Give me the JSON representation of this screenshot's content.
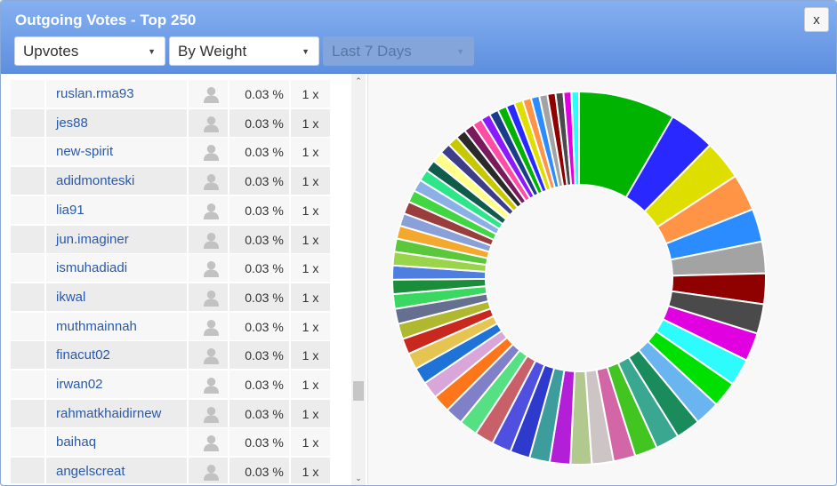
{
  "window": {
    "title": "Outgoing Votes - Top 250",
    "close_label": "x"
  },
  "filters": {
    "vote_type": "Upvotes",
    "sort": "By Weight",
    "period": "Last 7 Days"
  },
  "icons": {
    "close": "close-icon",
    "caret": "caret-down-icon",
    "user": "user-silhouette-icon",
    "scroll_up": "scroll-up-arrow-icon",
    "scroll_down": "scroll-down-arrow-icon"
  },
  "rows": [
    {
      "user": "ruslan.rma93",
      "percent": "0.03 %",
      "count": "1 x"
    },
    {
      "user": "jes88",
      "percent": "0.03 %",
      "count": "1 x"
    },
    {
      "user": "new-spirit",
      "percent": "0.03 %",
      "count": "1 x"
    },
    {
      "user": "adidmonteski",
      "percent": "0.03 %",
      "count": "1 x"
    },
    {
      "user": "lia91",
      "percent": "0.03 %",
      "count": "1 x"
    },
    {
      "user": "jun.imaginer",
      "percent": "0.03 %",
      "count": "1 x"
    },
    {
      "user": "ismuhadiadi",
      "percent": "0.03 %",
      "count": "1 x"
    },
    {
      "user": "ikwal",
      "percent": "0.03 %",
      "count": "1 x"
    },
    {
      "user": "muthmainnah",
      "percent": "0.03 %",
      "count": "1 x"
    },
    {
      "user": "finacut02",
      "percent": "0.03 %",
      "count": "1 x"
    },
    {
      "user": "irwan02",
      "percent": "0.03 %",
      "count": "1 x"
    },
    {
      "user": "rahmatkhaidirnew",
      "percent": "0.03 %",
      "count": "1 x"
    },
    {
      "user": "baihaq",
      "percent": "0.03 %",
      "count": "1 x"
    },
    {
      "user": "angelscreat",
      "percent": "0.03 %",
      "count": "1 x"
    }
  ],
  "chart_data": {
    "type": "pie",
    "title": "",
    "donut": true,
    "start_angle_deg": 0,
    "direction": "clockwise",
    "values": [
      35.7,
      17.0,
      14.6,
      13.6,
      12.2,
      11.7,
      11.3,
      10.9,
      10.5,
      10.0,
      9.5,
      9.2,
      9.0,
      8.7,
      8.4,
      8.1,
      8.0,
      7.8,
      7.6,
      7.5,
      7.3,
      7.2,
      7.0,
      6.8,
      6.6,
      6.5,
      6.3,
      6.2,
      6.0,
      5.8,
      5.7,
      5.6,
      5.4,
      5.3,
      5.2,
      5.0,
      4.9,
      4.8,
      4.7,
      4.6,
      4.5,
      4.4,
      4.3,
      4.2,
      4.1,
      4.0,
      3.9,
      3.8,
      3.7,
      3.6,
      3.5,
      3.4,
      3.3,
      3.2,
      3.2,
      3.1,
      3.1,
      3.0,
      3.0,
      2.9,
      2.9,
      2.8
    ],
    "colors": [
      "#00b300",
      "#2929ff",
      "#dede00",
      "#ff9447",
      "#2b8cff",
      "#a3a3a3",
      "#8f0000",
      "#4a4a4a",
      "#e000e0",
      "#2efcfc",
      "#00e000",
      "#6ab4f0",
      "#1a8c5c",
      "#3aa890",
      "#42c421",
      "#d266a6",
      "#cdc5c5",
      "#b1c98f",
      "#b21fd6",
      "#3d9c9c",
      "#2d3acb",
      "#5050e0",
      "#c8606a",
      "#55e083",
      "#8080c8",
      "#ff7519",
      "#d8a6d8",
      "#1f73d6",
      "#e6c450",
      "#c8281e",
      "#b0b830",
      "#657090",
      "#3ad860",
      "#1a8c3a",
      "#4d7ee0",
      "#9ad44a",
      "#5ac83a",
      "#f5a82e",
      "#8aa0d8",
      "#9a3d3d",
      "#42d642",
      "#8ab0e6",
      "#2ee68a",
      "#0f5c4d",
      "#ffff8a",
      "#3d3d8a",
      "#c8c800",
      "#2a2a2a",
      "#7a1a5c",
      "#ff4da6",
      "#8a1aff",
      "#1a3d8a"
    ]
  }
}
